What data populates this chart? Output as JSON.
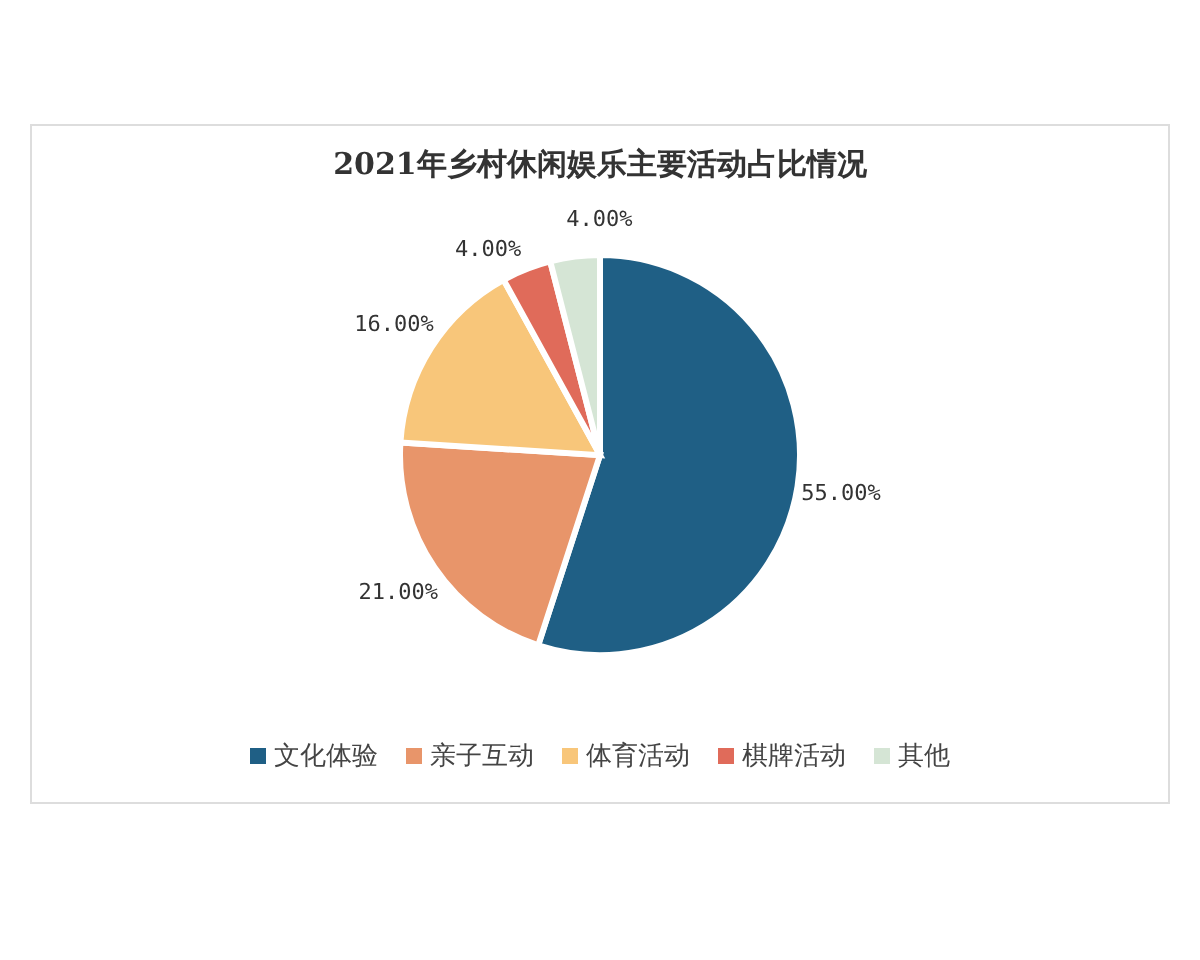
{
  "chart_data": {
    "type": "pie",
    "title": "2021年乡村休闲娱乐主要活动占比情况",
    "categories": [
      "文化体验",
      "亲子互动",
      "体育活动",
      "棋牌活动",
      "其他"
    ],
    "values": [
      55,
      21,
      16,
      4,
      4
    ],
    "value_labels": [
      "55.00%",
      "21.00%",
      "16.00%",
      "4.00%",
      "4.00%"
    ],
    "colors": [
      "#1f5f85",
      "#e8956a",
      "#f8c67a",
      "#e06b5a",
      "#d5e5d5"
    ],
    "legend": "bottom"
  }
}
